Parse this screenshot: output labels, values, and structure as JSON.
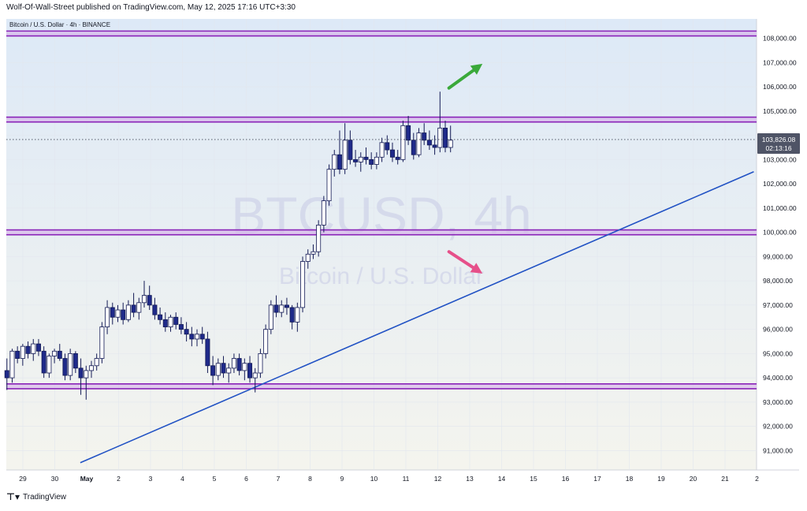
{
  "header": {
    "published_text": "Wolf-Of-Wall-Street published on TradingView.com, May 12, 2025 17:16 UTC+3:30"
  },
  "footer": {
    "brand": "TradingView",
    "logo_icon": "tradingview-logo-icon"
  },
  "chart_data": {
    "type": "candlestick",
    "symbol_label": "Bitcoin / U.S. Dollar · 4h · BINANCE",
    "watermark_title": "BTCUSD, 4h",
    "watermark_subtitle": "Bitcoin / U.S. Dollar",
    "price_axis": {
      "range": [
        90200,
        108800
      ],
      "ticks": [
        "91,000.00",
        "92,000.00",
        "93,000.00",
        "94,000.00",
        "95,000.00",
        "96,000.00",
        "97,000.00",
        "98,000.00",
        "99,000.00",
        "100,000.00",
        "101,000.00",
        "102,000.00",
        "103,000.00",
        "104,000.00",
        "105,000.00",
        "106,000.00",
        "107,000.00",
        "108,000.00"
      ],
      "tick_values": [
        91000,
        92000,
        93000,
        94000,
        95000,
        96000,
        97000,
        98000,
        99000,
        100000,
        101000,
        102000,
        103000,
        104000,
        105000,
        106000,
        107000,
        108000
      ]
    },
    "time_axis": {
      "ticks": [
        "29",
        "30",
        "May",
        "2",
        "3",
        "4",
        "5",
        "6",
        "7",
        "8",
        "9",
        "10",
        "11",
        "12",
        "13",
        "14",
        "15",
        "16",
        "17",
        "18",
        "19",
        "20",
        "21",
        "2"
      ],
      "tick_days": [
        -2,
        -1,
        0,
        1,
        2,
        3,
        4,
        5,
        6,
        7,
        8,
        9,
        10,
        11,
        12,
        13,
        14,
        15,
        16,
        17,
        18,
        19,
        20,
        21
      ]
    },
    "last_price": {
      "value": 103826.08,
      "label": "103,826.08",
      "countdown": "02:13:16"
    },
    "zones": [
      {
        "name": "resistance-108k",
        "low": 108100,
        "high": 108300
      },
      {
        "name": "resistance-104.7k",
        "low": 104550,
        "high": 104750
      },
      {
        "name": "support-100k",
        "low": 99900,
        "high": 100100
      },
      {
        "name": "support-93.7k",
        "low": 93550,
        "high": 93750
      }
    ],
    "trendline": {
      "start": [
        -0.2,
        90500
      ],
      "end": [
        20.9,
        102500
      ]
    },
    "arrows": [
      {
        "direction": "up",
        "color": "#3aa93a",
        "from": [
          11.35,
          105950
        ],
        "to": [
          12.4,
          106950
        ]
      },
      {
        "direction": "down",
        "color": "#e6508a",
        "from": [
          11.35,
          99200
        ],
        "to": [
          12.4,
          98300
        ]
      }
    ],
    "candles": [
      [
        94300,
        94800,
        93500,
        94000
      ],
      [
        94000,
        95200,
        93800,
        95100
      ],
      [
        95100,
        95300,
        94600,
        94800
      ],
      [
        94800,
        95400,
        94500,
        95300
      ],
      [
        95300,
        95500,
        94800,
        95000
      ],
      [
        95000,
        95600,
        94700,
        95400
      ],
      [
        95400,
        95600,
        94900,
        95100
      ],
      [
        95100,
        95300,
        94000,
        94200
      ],
      [
        94200,
        95000,
        94000,
        94900
      ],
      [
        94900,
        95200,
        94600,
        95100
      ],
      [
        95100,
        95400,
        94700,
        94800
      ],
      [
        94800,
        95000,
        93900,
        94100
      ],
      [
        94100,
        95200,
        93900,
        95000
      ],
      [
        95000,
        95100,
        94200,
        94400
      ],
      [
        94400,
        94800,
        93300,
        94000
      ],
      [
        94000,
        94500,
        93100,
        94300
      ],
      [
        94300,
        94700,
        94000,
        94500
      ],
      [
        94500,
        95000,
        94300,
        94800
      ],
      [
        94800,
        96300,
        94600,
        96100
      ],
      [
        96100,
        97200,
        95800,
        96900
      ],
      [
        96900,
        97100,
        96200,
        96500
      ],
      [
        96500,
        97000,
        96300,
        96800
      ],
      [
        96800,
        97100,
        96200,
        96400
      ],
      [
        96400,
        97200,
        96300,
        97000
      ],
      [
        97000,
        97500,
        96500,
        96700
      ],
      [
        96700,
        97300,
        96400,
        97100
      ],
      [
        97100,
        98000,
        96900,
        97400
      ],
      [
        97400,
        97800,
        96800,
        97000
      ],
      [
        97000,
        97300,
        96400,
        96600
      ],
      [
        96600,
        96900,
        96200,
        96400
      ],
      [
        96400,
        96700,
        95900,
        96100
      ],
      [
        96100,
        96600,
        95900,
        96500
      ],
      [
        96500,
        96700,
        96000,
        96200
      ],
      [
        96200,
        96500,
        95800,
        96000
      ],
      [
        96000,
        96300,
        95500,
        95800
      ],
      [
        95800,
        96100,
        95300,
        95600
      ],
      [
        95600,
        96000,
        95300,
        95800
      ],
      [
        95800,
        96100,
        95400,
        95600
      ],
      [
        95600,
        95900,
        94200,
        94500
      ],
      [
        94500,
        94900,
        93700,
        94100
      ],
      [
        94100,
        94800,
        93900,
        94600
      ],
      [
        94600,
        94900,
        94000,
        94200
      ],
      [
        94200,
        94600,
        93800,
        94400
      ],
      [
        94400,
        95000,
        94200,
        94800
      ],
      [
        94800,
        95000,
        94100,
        94300
      ],
      [
        94300,
        94800,
        93900,
        94600
      ],
      [
        94600,
        94900,
        93800,
        94000
      ],
      [
        94000,
        94400,
        93400,
        94200
      ],
      [
        94200,
        95200,
        94000,
        95000
      ],
      [
        95000,
        96200,
        94800,
        96000
      ],
      [
        96000,
        97200,
        95800,
        97000
      ],
      [
        97000,
        97400,
        96500,
        96700
      ],
      [
        96700,
        97200,
        96500,
        97000
      ],
      [
        97000,
        97300,
        96600,
        96900
      ],
      [
        96900,
        97000,
        96000,
        96300
      ],
      [
        96300,
        97100,
        95900,
        96900
      ],
      [
        96900,
        99000,
        96700,
        98800
      ],
      [
        98800,
        99300,
        98500,
        99100
      ],
      [
        99100,
        99500,
        98900,
        99200
      ],
      [
        99200,
        100500,
        99000,
        100300
      ],
      [
        100300,
        101500,
        100000,
        101300
      ],
      [
        101300,
        102800,
        101100,
        102600
      ],
      [
        102600,
        103400,
        102300,
        103200
      ],
      [
        103200,
        104200,
        102400,
        102600
      ],
      [
        102600,
        104500,
        102400,
        103800
      ],
      [
        103800,
        104200,
        102800,
        103000
      ],
      [
        103000,
        103400,
        102700,
        102900
      ],
      [
        102900,
        103300,
        102500,
        103100
      ],
      [
        103100,
        103500,
        102800,
        103000
      ],
      [
        103000,
        103300,
        102600,
        102800
      ],
      [
        102800,
        103300,
        102600,
        103100
      ],
      [
        103100,
        103900,
        102900,
        103700
      ],
      [
        103700,
        104000,
        103200,
        103400
      ],
      [
        103400,
        103700,
        102900,
        103100
      ],
      [
        103100,
        103400,
        102800,
        103000
      ],
      [
        103000,
        104600,
        102900,
        104400
      ],
      [
        104400,
        104800,
        103600,
        103800
      ],
      [
        103800,
        104100,
        103000,
        103200
      ],
      [
        103200,
        104300,
        103100,
        104100
      ],
      [
        104100,
        104500,
        103600,
        103800
      ],
      [
        103800,
        104200,
        103400,
        103600
      ],
      [
        103600,
        104000,
        103200,
        103500
      ],
      [
        103500,
        105800,
        103300,
        104300
      ],
      [
        104300,
        104600,
        103300,
        103500
      ],
      [
        103500,
        104400,
        103300,
        103800
      ]
    ]
  }
}
